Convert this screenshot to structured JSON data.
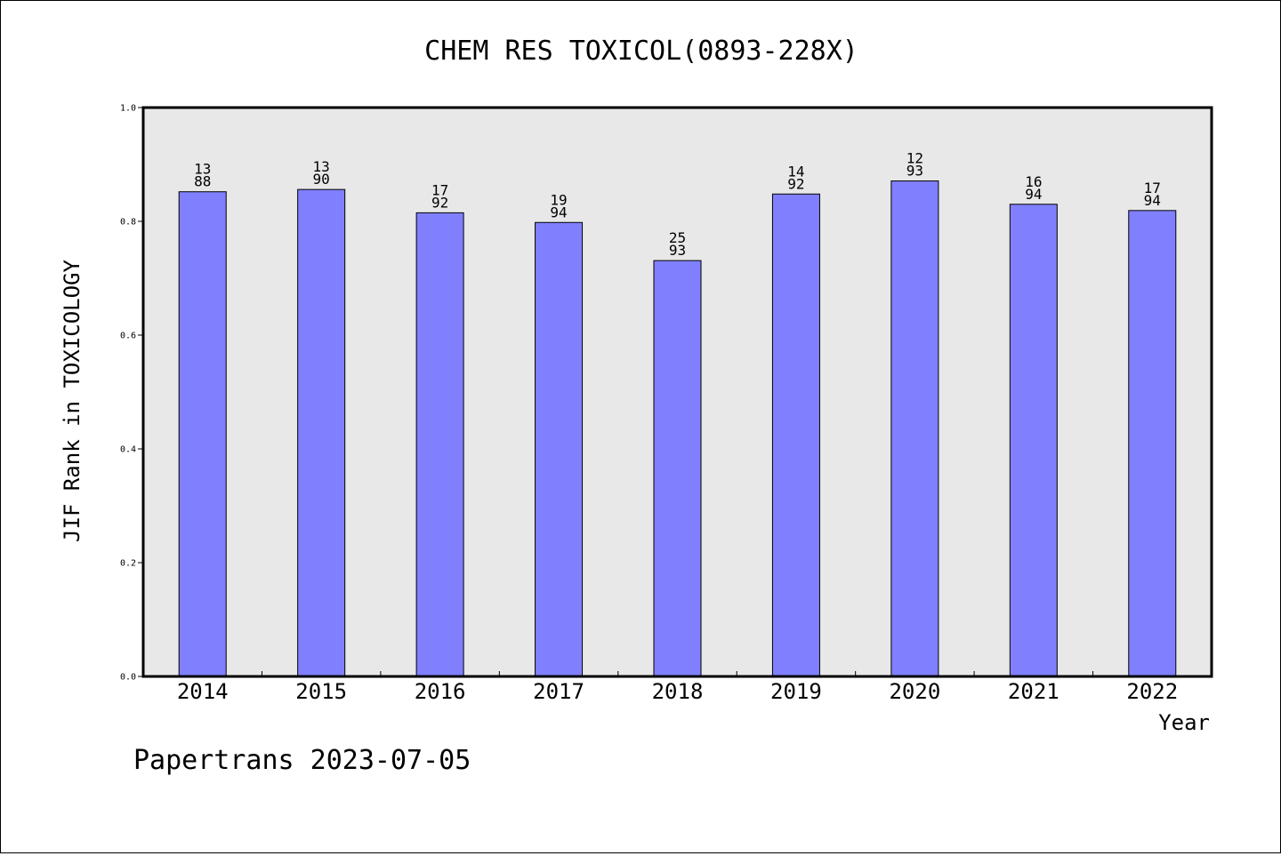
{
  "chart_data": {
    "type": "bar",
    "title": "CHEM RES TOXICOL(0893-228X)",
    "xlabel": "Year",
    "ylabel": "JIF Rank in TOXICOLOGY",
    "ylim": [
      0,
      1
    ],
    "yticks": [
      "0.0",
      "0.2",
      "0.4",
      "0.6",
      "0.8",
      "1.0"
    ],
    "ytick_values": [
      0,
      0.2,
      0.4,
      0.6,
      0.8,
      1.0
    ],
    "categories": [
      "2014",
      "2015",
      "2016",
      "2017",
      "2018",
      "2019",
      "2020",
      "2021",
      "2022"
    ],
    "values": [
      0.852,
      0.856,
      0.815,
      0.798,
      0.731,
      0.848,
      0.871,
      0.83,
      0.819
    ],
    "rank_labels": [
      {
        "rank": "13",
        "total": "88"
      },
      {
        "rank": "13",
        "total": "90"
      },
      {
        "rank": "17",
        "total": "92"
      },
      {
        "rank": "19",
        "total": "94"
      },
      {
        "rank": "25",
        "total": "93"
      },
      {
        "rank": "14",
        "total": "92"
      },
      {
        "rank": "12",
        "total": "93"
      },
      {
        "rank": "16",
        "total": "94"
      },
      {
        "rank": "17",
        "total": "94"
      }
    ],
    "bar_color": "#8080ff",
    "plot_background": "#e8e8e8",
    "grid": false,
    "legend": "none"
  },
  "footer": {
    "text": "Papertrans 2023-07-05"
  }
}
